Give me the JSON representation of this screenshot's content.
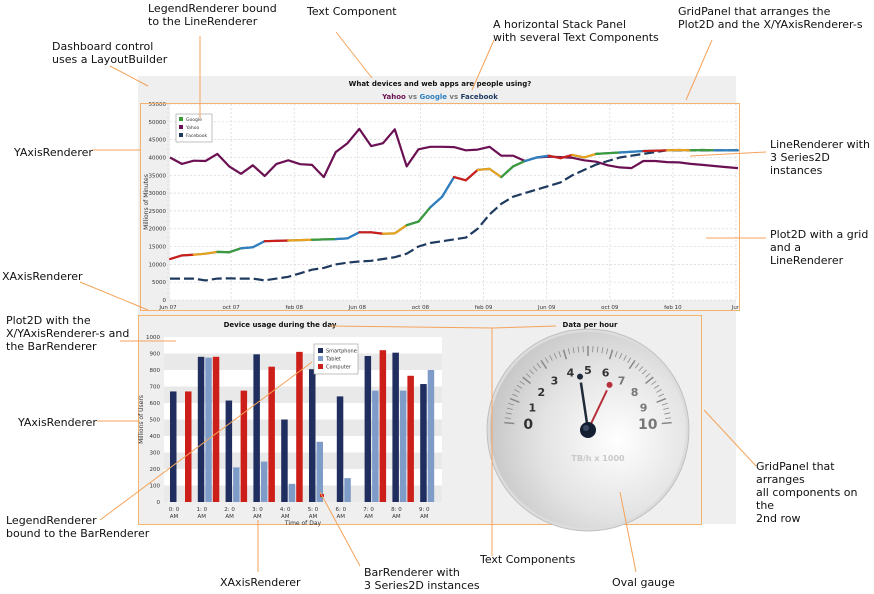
{
  "annotations": {
    "dashboard": "Dashboard control\nuses a LayoutBuilder",
    "legend_line": "LegendRenderer bound\nto the LineRenderer",
    "text_component": "Text Component",
    "stack_panel": "A horizontal Stack Panel\nwith several Text Components",
    "gridpanel_top": "GridPanel that arranges the\nPlot2D and the X/YAxisRenderer-s",
    "yaxis_top": "YAxisRenderer",
    "line_renderer": "LineRenderer with\n3 Series2D instances",
    "plot2d_grid": "Plot2D with a grid\nand a LineRenderer",
    "xaxis_top": "XAxisRenderer",
    "plot2d_bar": "Plot2D with the\nX/YAxisRenderer-s and\nthe BarRenderer",
    "yaxis_bottom": "YAxisRenderer",
    "legend_bar": "LegendRenderer\nbound to the BarRenderer",
    "xaxis_bottom": "XAxisRenderer",
    "bar_renderer": "BarRenderer with\n3 Series2D  instances",
    "text_components": "Text Components",
    "oval_gauge": "Oval gauge",
    "gridpanel_bottom": "GridPanel that arranges\nall components on the\n2nd row"
  },
  "dashboard": {
    "title": "What devices and web apps are people using?",
    "subtitle_parts": {
      "yahoo": "Yahoo",
      "vs1": " vs ",
      "google": "Google",
      "vs2": " vs ",
      "facebook": "Facebook"
    }
  },
  "colors": {
    "yahoo": "#6b1053",
    "google": "#2f7fbf",
    "facebook": "#1f3a5f",
    "smartphone": "#1f2e5e",
    "tablet": "#7f9cc8",
    "computer": "#cc1f1a",
    "annotation_line": "#f4a35a"
  },
  "chart_data": [
    {
      "type": "line",
      "title": "",
      "ylabel": "Millions of Minutes",
      "xlabel": "",
      "ylim": [
        0,
        55000
      ],
      "yticks": [
        "0",
        "5000",
        "10000",
        "15000",
        "20000",
        "25000",
        "30000",
        "35000",
        "40000",
        "45000",
        "50000",
        "55000"
      ],
      "xticks": [
        "Jun 07",
        "oct 07",
        "feb 08",
        "Jun 08",
        "oct 08",
        "feb 09",
        "Jun 09",
        "oct 09",
        "feb 10",
        "Jun"
      ],
      "legend": [
        "Google",
        "Yahoo",
        "Facebook"
      ],
      "legend_position": "top-left",
      "grid": true,
      "x_count": 49,
      "series": [
        {
          "name": "Yahoo",
          "values": [
            40000,
            38200,
            39100,
            39000,
            41000,
            37500,
            35400,
            37800,
            34800,
            38200,
            39200,
            38100,
            37900,
            34500,
            41500,
            44000,
            48000,
            43200,
            44000,
            47900,
            37500,
            42300,
            43000,
            43000,
            42900,
            42000,
            42200,
            43000,
            40500,
            40500,
            39000,
            40000,
            40200,
            40100,
            39900,
            39200,
            38800,
            37800,
            37200,
            37000,
            39000,
            39000,
            38700,
            38600,
            38200,
            37900,
            37600,
            37300,
            37000
          ]
        },
        {
          "name": "Google",
          "values": [
            11500,
            12500,
            12700,
            13000,
            13500,
            13400,
            14500,
            14800,
            16500,
            16600,
            16700,
            16800,
            16900,
            17000,
            17100,
            17300,
            19000,
            19000,
            18600,
            18700,
            21000,
            22000,
            26000,
            29000,
            34500,
            33600,
            36500,
            36800,
            34500,
            37500,
            39000,
            40000,
            40500,
            39800,
            40700,
            40000,
            41000,
            41200,
            41400,
            41600,
            41800,
            41900,
            42000,
            42100,
            42000,
            42100,
            42000,
            42000,
            42000
          ]
        },
        {
          "name": "Facebook",
          "values": [
            6000,
            6000,
            6000,
            5500,
            6000,
            6100,
            6000,
            6000,
            5500,
            6000,
            6500,
            7500,
            8500,
            9000,
            10000,
            10500,
            10800,
            11000,
            11500,
            12000,
            13000,
            15000,
            16000,
            16500,
            17000,
            17500,
            20000,
            24000,
            27000,
            29000,
            30000,
            31000,
            32000,
            33000,
            35000,
            36500,
            38000,
            39000,
            40000,
            40500,
            41000,
            41500,
            42000,
            42000,
            42000,
            42000,
            42000,
            42000,
            42000
          ]
        }
      ]
    },
    {
      "type": "bar",
      "title": "Device usage during the day",
      "ylabel": "Millions of Users",
      "xlabel": "Time of Day",
      "ylim": [
        0,
        1000
      ],
      "yticks": [
        "0",
        "100",
        "200",
        "300",
        "400",
        "500",
        "600",
        "700",
        "800",
        "900",
        "1000"
      ],
      "categories": [
        "0: 0\nAM",
        "1: 0\nAM",
        "2: 0\nAM",
        "3: 0\nAM",
        "4: 0\nAM",
        "5: 0\nAM",
        "6: 0\nAM",
        "7: 0\nAM",
        "8: 0\nAM",
        "9: 0\nAM"
      ],
      "legend_position": "top-right",
      "series": [
        {
          "name": "Smartphone",
          "values": [
            670,
            880,
            615,
            895,
            500,
            805,
            640,
            885,
            905,
            715
          ]
        },
        {
          "name": "Tablet",
          "values": [
            0,
            875,
            210,
            245,
            110,
            365,
            145,
            675,
            675,
            800
          ]
        },
        {
          "name": "Computer",
          "values": [
            670,
            880,
            675,
            820,
            910,
            0,
            0,
            920,
            765,
            0
          ]
        }
      ]
    },
    {
      "type": "gauge",
      "title": "Data per hour",
      "unit_label": "TB/h x 1000",
      "ticks": [
        "0",
        "1",
        "2",
        "3",
        "4",
        "5",
        "6",
        "7",
        "8",
        "9",
        "10"
      ],
      "needle_long": 4.5,
      "needle_short": 6.5
    }
  ]
}
